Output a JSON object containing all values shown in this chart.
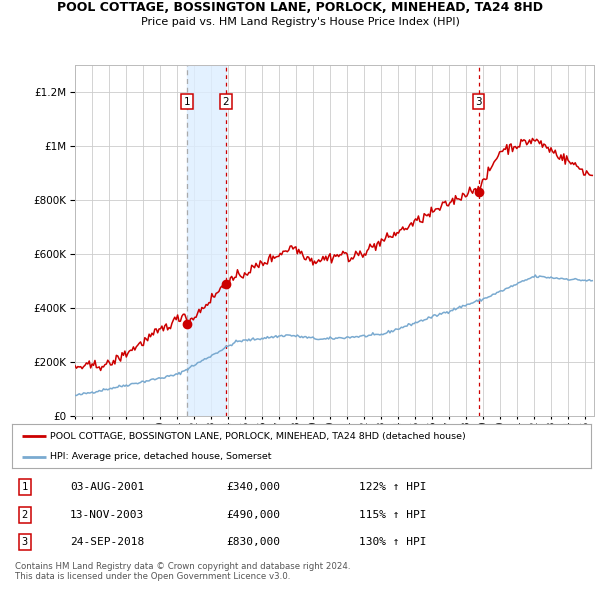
{
  "title": "POOL COTTAGE, BOSSINGTON LANE, PORLOCK, MINEHEAD, TA24 8HD",
  "subtitle": "Price paid vs. HM Land Registry's House Price Index (HPI)",
  "red_label": "POOL COTTAGE, BOSSINGTON LANE, PORLOCK, MINEHEAD, TA24 8HD (detached house)",
  "blue_label": "HPI: Average price, detached house, Somerset",
  "transactions": [
    {
      "num": 1,
      "date": "03-AUG-2001",
      "year": 2001.58,
      "price": 340000,
      "pct": "122%",
      "dir": "↑"
    },
    {
      "num": 2,
      "date": "13-NOV-2003",
      "year": 2003.87,
      "price": 490000,
      "pct": "115%",
      "dir": "↑"
    },
    {
      "num": 3,
      "date": "24-SEP-2018",
      "year": 2018.72,
      "price": 830000,
      "pct": "130%",
      "dir": "↑"
    }
  ],
  "footnote1": "Contains HM Land Registry data © Crown copyright and database right 2024.",
  "footnote2": "This data is licensed under the Open Government Licence v3.0.",
  "ylim": [
    0,
    1300000
  ],
  "xlim_start": 1995.0,
  "xlim_end": 2025.5,
  "background_color": "#ffffff",
  "grid_color": "#cccccc",
  "red_color": "#cc0000",
  "blue_color": "#7aaad0",
  "shade_color": "#ddeeff"
}
